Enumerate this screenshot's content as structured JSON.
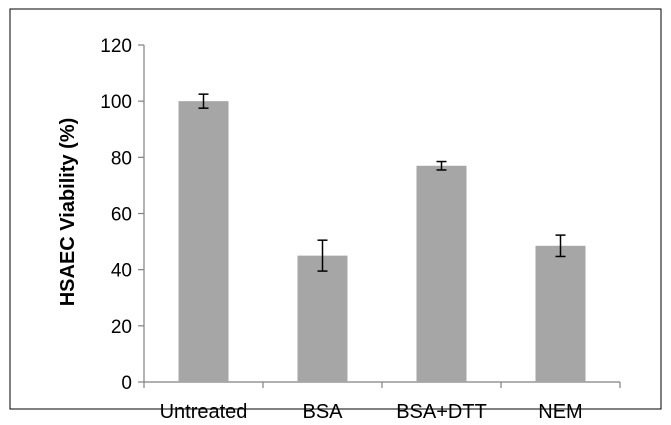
{
  "chart_data": {
    "type": "bar",
    "title": "",
    "xlabel": "",
    "ylabel": "HSAEC Viability (%)",
    "categories": [
      "Untreated",
      "BSA",
      "BSA+DTT",
      "NEM"
    ],
    "values": [
      100,
      45,
      77,
      48.5
    ],
    "errors": [
      2.5,
      5.5,
      1.5,
      3.8
    ],
    "ylim": [
      0,
      120
    ],
    "yticks": [
      "0",
      "20",
      "40",
      "60",
      "80",
      "100",
      "120"
    ],
    "grid": false,
    "legend": "none",
    "colors": {
      "bar": "#a6a6a6",
      "axis": "#808080",
      "error": "#000000",
      "frame": "#000000"
    }
  }
}
